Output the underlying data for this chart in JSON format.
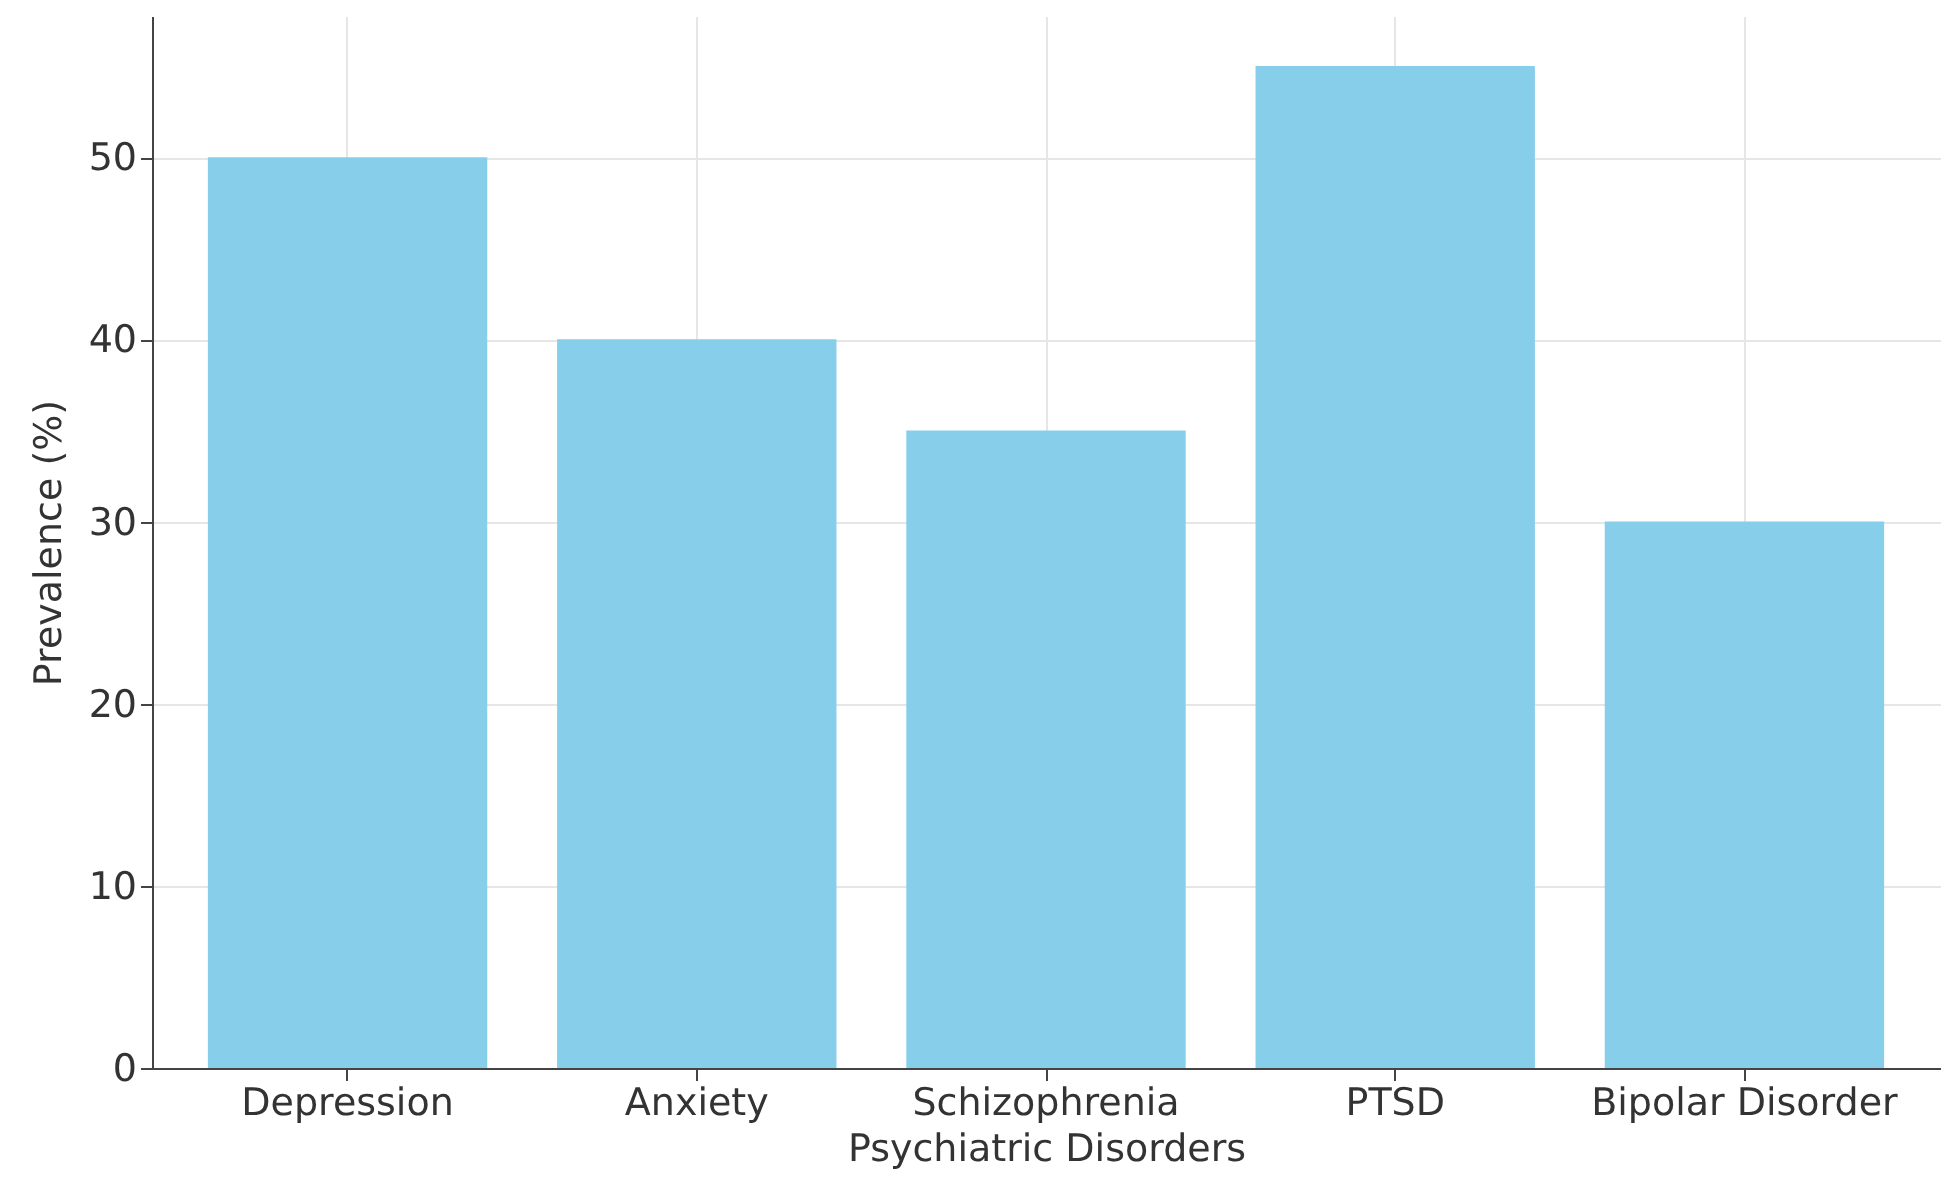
{
  "chart_data": {
    "type": "bar",
    "xlabel": "Psychiatric Disorders",
    "ylabel": "Prevalence (%)",
    "categories": [
      "Depression",
      "Anxiety",
      "Schizophrenia",
      "PTSD",
      "Bipolar Disorder"
    ],
    "values": [
      50,
      40,
      35,
      55,
      30
    ],
    "color": "#87ceeb",
    "ylim": [
      0,
      57.75
    ],
    "yticks": [
      0,
      10,
      20,
      30,
      40,
      50
    ],
    "grid": true
  }
}
